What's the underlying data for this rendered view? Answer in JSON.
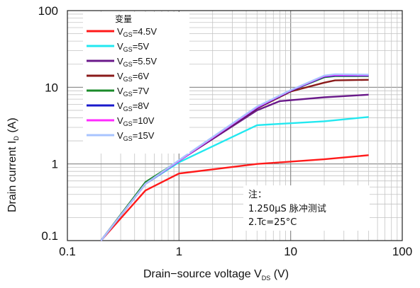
{
  "chart_data": {
    "type": "line",
    "x_scale": "log",
    "y_scale": "log",
    "xlim": [
      0.1,
      100
    ],
    "ylim": [
      0.1,
      100
    ],
    "grid": true,
    "x_ticks": [
      "0.1",
      "1",
      "10",
      "100"
    ],
    "y_ticks": [
      "0.1",
      "1",
      "10",
      "100"
    ],
    "xlabel": {
      "main": "Drain−source voltage V",
      "sub": "DS",
      "unit": " (V)"
    },
    "ylabel": {
      "main": "Drain current I",
      "sub": "D",
      "unit": " (A)"
    },
    "legend_title": "变量",
    "legend_position": "top-left",
    "series": [
      {
        "name": "4.5V",
        "color": "#ff1a1a",
        "points": [
          [
            0.2,
            0.1
          ],
          [
            0.5,
            0.45
          ],
          [
            1,
            0.75
          ],
          [
            5,
            1.0
          ],
          [
            20,
            1.15
          ],
          [
            50,
            1.3
          ]
        ]
      },
      {
        "name": "5V",
        "color": "#22e8f0",
        "points": [
          [
            0.2,
            0.1
          ],
          [
            0.5,
            0.55
          ],
          [
            1,
            1.05
          ],
          [
            5,
            3.2
          ],
          [
            20,
            3.6
          ],
          [
            50,
            4.1
          ]
        ]
      },
      {
        "name": "5.5V",
        "color": "#6a1a8a",
        "points": [
          [
            0.2,
            0.1
          ],
          [
            0.5,
            0.55
          ],
          [
            1,
            1.1
          ],
          [
            5,
            5.0
          ],
          [
            8,
            6.6
          ],
          [
            20,
            7.4
          ],
          [
            50,
            8.0
          ]
        ]
      },
      {
        "name": "6V",
        "color": "#8a1a1a",
        "points": [
          [
            0.2,
            0.1
          ],
          [
            0.5,
            0.55
          ],
          [
            1,
            1.1
          ],
          [
            5,
            5.3
          ],
          [
            10,
            8.8
          ],
          [
            20,
            11.5
          ],
          [
            25,
            12.3
          ],
          [
            50,
            12.5
          ]
        ]
      },
      {
        "name": "7V",
        "color": "#1a8a2a",
        "points": [
          [
            0.2,
            0.1
          ],
          [
            0.5,
            0.58
          ],
          [
            1,
            1.1
          ],
          [
            5,
            5.4
          ],
          [
            10,
            9.0
          ],
          [
            20,
            13.5
          ],
          [
            25,
            14.0
          ],
          [
            50,
            14.0
          ]
        ]
      },
      {
        "name": "8V",
        "color": "#1a1acc",
        "points": [
          [
            0.2,
            0.1
          ],
          [
            0.5,
            0.55
          ],
          [
            1,
            1.1
          ],
          [
            5,
            5.4
          ],
          [
            10,
            9.0
          ],
          [
            20,
            13.8
          ],
          [
            25,
            14.2
          ],
          [
            50,
            14.2
          ]
        ]
      },
      {
        "name": "10V",
        "color": "#ff2aff",
        "points": [
          [
            0.2,
            0.1
          ],
          [
            0.5,
            0.55
          ],
          [
            1,
            1.1
          ],
          [
            5,
            5.5
          ],
          [
            10,
            9.1
          ],
          [
            20,
            14.0
          ],
          [
            25,
            14.5
          ],
          [
            50,
            14.4
          ]
        ]
      },
      {
        "name": "15V",
        "color": "#a8c4ff",
        "points": [
          [
            0.2,
            0.1
          ],
          [
            0.5,
            0.55
          ],
          [
            1,
            1.12
          ],
          [
            5,
            5.6
          ],
          [
            10,
            9.2
          ],
          [
            20,
            14.2
          ],
          [
            25,
            14.8
          ],
          [
            50,
            14.6
          ]
        ]
      }
    ],
    "legend_prefix": {
      "main": "V",
      "sub": "GS",
      "sep": "="
    },
    "notes": [
      "注：",
      "1.250μS 脉冲测试",
      "2.Tc=25°C"
    ]
  }
}
